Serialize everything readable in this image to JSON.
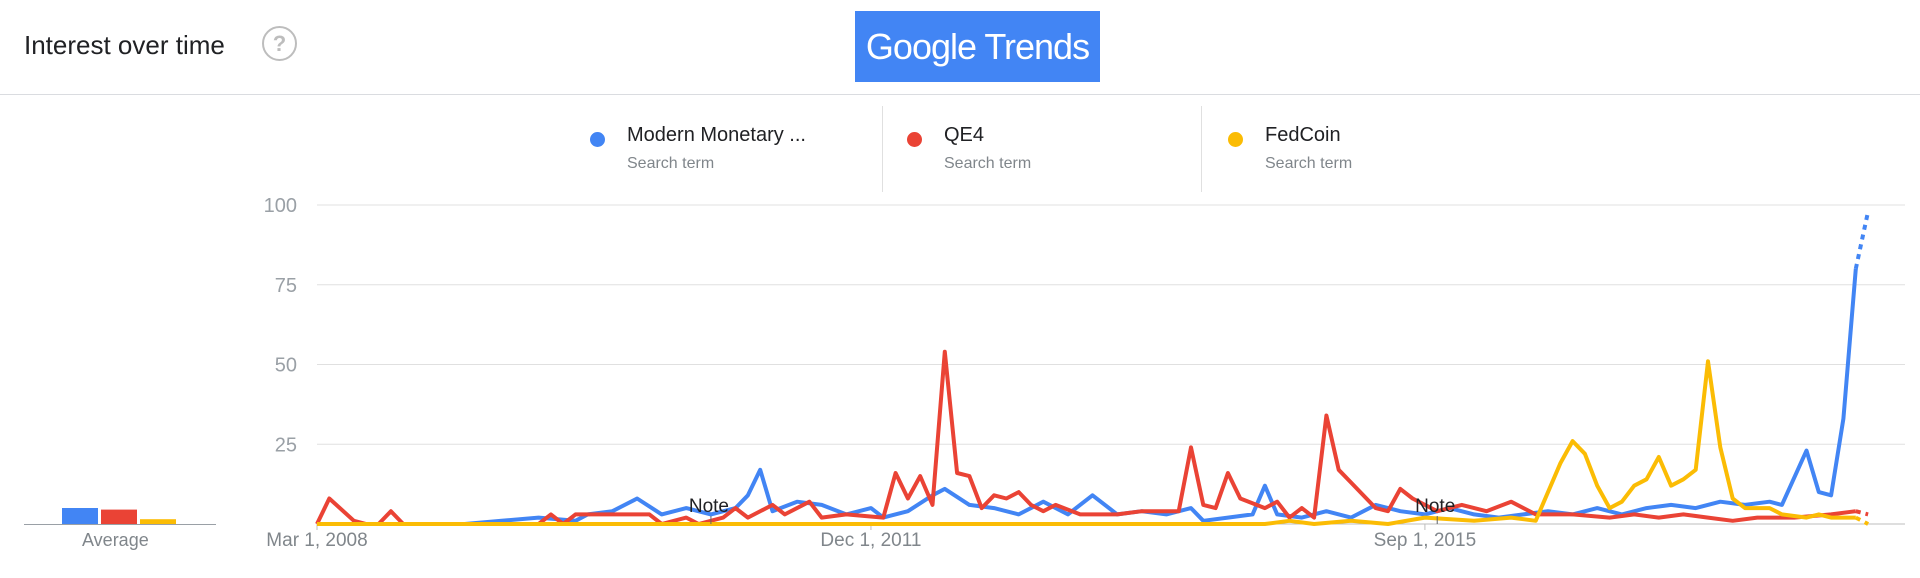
{
  "header": {
    "title": "Interest over time",
    "help_icon": "?",
    "logo_text": "Google Trends"
  },
  "legend": [
    {
      "name": "Modern Monetary ...",
      "sub": "Search term",
      "color": "#4285f4"
    },
    {
      "name": "QE4",
      "sub": "Search term",
      "color": "#ea4335"
    },
    {
      "name": "FedCoin",
      "sub": "Search term",
      "color": "#fbbc04"
    }
  ],
  "average": {
    "label": "Average",
    "values": [
      5,
      4.5,
      1.5
    ]
  },
  "chart_data": {
    "type": "line",
    "x_tick_labels": [
      "Mar 1, 2008",
      "Dec 1, 2011",
      "Sep 1, 2015"
    ],
    "x_tick_positions": [
      "2008-03",
      "2011-12",
      "2015-09"
    ],
    "x_range": [
      "2008-03",
      "2018-12"
    ],
    "ylim": [
      0,
      100
    ],
    "y_ticks": [
      100,
      75,
      50,
      25
    ],
    "grid": true,
    "notes": [
      {
        "label": "Note",
        "at": "2010-11"
      },
      {
        "label": "Note",
        "at": "2015-10"
      }
    ],
    "series": [
      {
        "name": "Modern Monetary ...",
        "color": "#4285f4",
        "points": [
          [
            "2008-03",
            0
          ],
          [
            "2009-03",
            0
          ],
          [
            "2009-06",
            1
          ],
          [
            "2009-09",
            2
          ],
          [
            "2009-12",
            1
          ],
          [
            "2010-01",
            3
          ],
          [
            "2010-03",
            4
          ],
          [
            "2010-05",
            8
          ],
          [
            "2010-07",
            3
          ],
          [
            "2010-09",
            5
          ],
          [
            "2010-11",
            3
          ],
          [
            "2011-01",
            5
          ],
          [
            "2011-02",
            9
          ],
          [
            "2011-03",
            17
          ],
          [
            "2011-04",
            4
          ],
          [
            "2011-06",
            7
          ],
          [
            "2011-08",
            6
          ],
          [
            "2011-10",
            3
          ],
          [
            "2011-12",
            5
          ],
          [
            "2012-01",
            2
          ],
          [
            "2012-03",
            4
          ],
          [
            "2012-05",
            9
          ],
          [
            "2012-06",
            11
          ],
          [
            "2012-08",
            6
          ],
          [
            "2012-10",
            5
          ],
          [
            "2012-12",
            3
          ],
          [
            "2013-02",
            7
          ],
          [
            "2013-04",
            3
          ],
          [
            "2013-06",
            9
          ],
          [
            "2013-08",
            3
          ],
          [
            "2013-10",
            4
          ],
          [
            "2013-12",
            3
          ],
          [
            "2014-02",
            5
          ],
          [
            "2014-03",
            1
          ],
          [
            "2014-05",
            2
          ],
          [
            "2014-07",
            3
          ],
          [
            "2014-08",
            12
          ],
          [
            "2014-09",
            3
          ],
          [
            "2014-11",
            2
          ],
          [
            "2015-01",
            4
          ],
          [
            "2015-03",
            2
          ],
          [
            "2015-05",
            6
          ],
          [
            "2015-07",
            4
          ],
          [
            "2015-09",
            3
          ],
          [
            "2015-11",
            5
          ],
          [
            "2016-01",
            3
          ],
          [
            "2016-03",
            2
          ],
          [
            "2016-05",
            3
          ],
          [
            "2016-07",
            4
          ],
          [
            "2016-09",
            3
          ],
          [
            "2016-11",
            5
          ],
          [
            "2017-01",
            3
          ],
          [
            "2017-03",
            5
          ],
          [
            "2017-05",
            6
          ],
          [
            "2017-07",
            5
          ],
          [
            "2017-09",
            7
          ],
          [
            "2017-11",
            6
          ],
          [
            "2018-01",
            7
          ],
          [
            "2018-02",
            6
          ],
          [
            "2018-04",
            23
          ],
          [
            "2018-05",
            10
          ],
          [
            "2018-06",
            9
          ],
          [
            "2018-07",
            33
          ],
          [
            "2018-08",
            80
          ]
        ],
        "partial_points": [
          [
            "2018-08",
            80
          ],
          [
            "2018-09",
            98
          ]
        ]
      },
      {
        "name": "QE4",
        "color": "#ea4335",
        "points": [
          [
            "2008-03",
            0
          ],
          [
            "2008-04",
            8
          ],
          [
            "2008-06",
            1
          ],
          [
            "2008-07",
            0
          ],
          [
            "2008-08",
            0
          ],
          [
            "2008-09",
            4
          ],
          [
            "2008-10",
            0
          ],
          [
            "2009-09",
            0
          ],
          [
            "2009-10",
            3
          ],
          [
            "2009-11",
            0
          ],
          [
            "2009-12",
            3
          ],
          [
            "2010-06",
            3
          ],
          [
            "2010-07",
            0
          ],
          [
            "2010-09",
            2
          ],
          [
            "2010-10",
            0
          ],
          [
            "2010-12",
            2
          ],
          [
            "2011-01",
            5
          ],
          [
            "2011-02",
            2
          ],
          [
            "2011-04",
            6
          ],
          [
            "2011-05",
            3
          ],
          [
            "2011-07",
            7
          ],
          [
            "2011-08",
            2
          ],
          [
            "2011-10",
            3
          ],
          [
            "2012-01",
            2
          ],
          [
            "2012-02",
            16
          ],
          [
            "2012-03",
            8
          ],
          [
            "2012-04",
            15
          ],
          [
            "2012-05",
            6
          ],
          [
            "2012-06",
            54
          ],
          [
            "2012-07",
            16
          ],
          [
            "2012-08",
            15
          ],
          [
            "2012-09",
            5
          ],
          [
            "2012-10",
            9
          ],
          [
            "2012-11",
            8
          ],
          [
            "2012-12",
            10
          ],
          [
            "2013-01",
            6
          ],
          [
            "2013-02",
            4
          ],
          [
            "2013-03",
            6
          ],
          [
            "2013-05",
            3
          ],
          [
            "2013-08",
            3
          ],
          [
            "2013-10",
            4
          ],
          [
            "2014-01",
            4
          ],
          [
            "2014-02",
            24
          ],
          [
            "2014-03",
            6
          ],
          [
            "2014-04",
            5
          ],
          [
            "2014-05",
            16
          ],
          [
            "2014-06",
            8
          ],
          [
            "2014-08",
            5
          ],
          [
            "2014-09",
            7
          ],
          [
            "2014-10",
            2
          ],
          [
            "2014-11",
            5
          ],
          [
            "2014-12",
            2
          ],
          [
            "2015-01",
            34
          ],
          [
            "2015-02",
            17
          ],
          [
            "2015-03",
            13
          ],
          [
            "2015-05",
            5
          ],
          [
            "2015-06",
            4
          ],
          [
            "2015-07",
            11
          ],
          [
            "2015-08",
            8
          ],
          [
            "2015-10",
            4
          ],
          [
            "2015-12",
            6
          ],
          [
            "2016-02",
            4
          ],
          [
            "2016-04",
            7
          ],
          [
            "2016-06",
            3
          ],
          [
            "2016-09",
            3
          ],
          [
            "2016-12",
            2
          ],
          [
            "2017-02",
            3
          ],
          [
            "2017-04",
            2
          ],
          [
            "2017-06",
            3
          ],
          [
            "2017-08",
            2
          ],
          [
            "2017-10",
            1
          ],
          [
            "2017-12",
            2
          ],
          [
            "2018-03",
            2
          ],
          [
            "2018-06",
            3
          ],
          [
            "2018-08",
            4
          ]
        ],
        "partial_points": [
          [
            "2018-08",
            4
          ],
          [
            "2018-09",
            3
          ]
        ]
      },
      {
        "name": "FedCoin",
        "color": "#fbbc04",
        "points": [
          [
            "2008-03",
            0
          ],
          [
            "2014-08",
            0
          ],
          [
            "2014-10",
            1
          ],
          [
            "2014-12",
            0
          ],
          [
            "2015-03",
            1
          ],
          [
            "2015-06",
            0
          ],
          [
            "2015-09",
            2
          ],
          [
            "2016-01",
            1
          ],
          [
            "2016-04",
            2
          ],
          [
            "2016-06",
            1
          ],
          [
            "2016-08",
            19
          ],
          [
            "2016-09",
            26
          ],
          [
            "2016-10",
            22
          ],
          [
            "2016-11",
            12
          ],
          [
            "2016-12",
            5
          ],
          [
            "2017-01",
            7
          ],
          [
            "2017-02",
            12
          ],
          [
            "2017-03",
            14
          ],
          [
            "2017-04",
            21
          ],
          [
            "2017-05",
            12
          ],
          [
            "2017-06",
            14
          ],
          [
            "2017-07",
            17
          ],
          [
            "2017-08",
            51
          ],
          [
            "2017-09",
            24
          ],
          [
            "2017-10",
            8
          ],
          [
            "2017-11",
            5
          ],
          [
            "2018-01",
            5
          ],
          [
            "2018-02",
            3
          ],
          [
            "2018-04",
            2
          ],
          [
            "2018-05",
            3
          ],
          [
            "2018-06",
            2
          ],
          [
            "2018-08",
            2
          ]
        ],
        "partial_points": [
          [
            "2018-08",
            2
          ],
          [
            "2018-09",
            0
          ]
        ]
      }
    ]
  }
}
